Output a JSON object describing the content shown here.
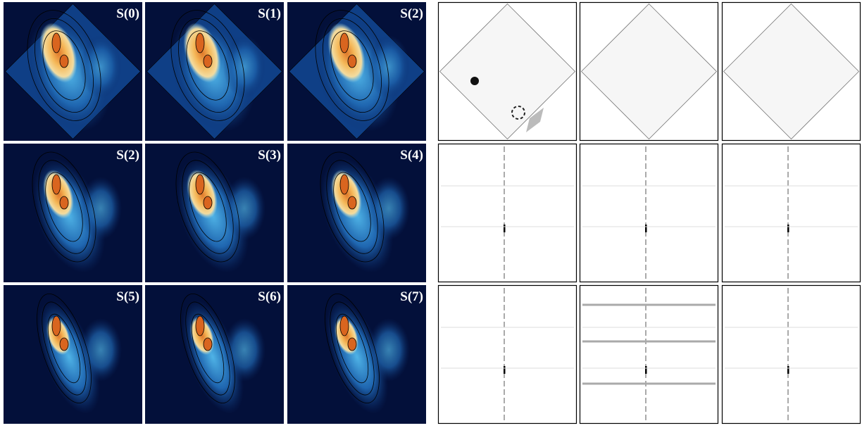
{
  "panels": [
    {
      "label": "S(0)"
    },
    {
      "label": "S(1)"
    },
    {
      "label": "S(2)"
    },
    {
      "label": "S(2)"
    },
    {
      "label": "S(3)"
    },
    {
      "label": "S(4)"
    },
    {
      "label": "S(5)"
    },
    {
      "label": "S(6)"
    },
    {
      "label": "S(7)"
    }
  ]
}
